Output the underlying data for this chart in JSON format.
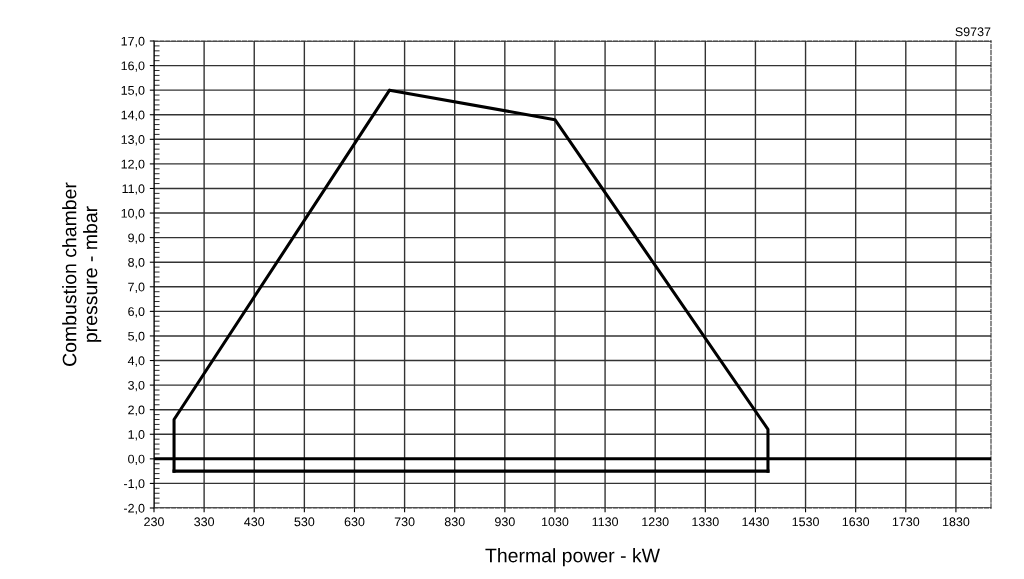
{
  "chart_data": {
    "type": "line",
    "xlabel": "Thermal power - kW",
    "ylabel": "Combustion chamber\npressure - mbar",
    "annotations": [
      "S9737"
    ],
    "series": [
      {
        "color": "#000000",
        "x": [
          270,
          270,
          700,
          1030,
          1455,
          1455
        ],
        "values": [
          -0.5,
          1.6,
          15,
          13.8,
          1.2,
          -0.5
        ]
      },
      {
        "color": "#000000",
        "x": [
          270,
          1455
        ],
        "values": [
          -0.5,
          -0.5
        ]
      }
    ],
    "xlim": [
      230,
      1900
    ],
    "xticks": [
      230,
      330,
      430,
      530,
      630,
      730,
      830,
      930,
      1030,
      1130,
      1230,
      1330,
      1430,
      1530,
      1630,
      1730,
      1830
    ],
    "ylim": [
      -2,
      17
    ],
    "yticks": [
      {
        "value": -2,
        "label": "-2,0"
      },
      {
        "value": -1,
        "label": "-1,0"
      },
      {
        "value": 0,
        "label": "0,0"
      },
      {
        "value": 1,
        "label": "1,0"
      },
      {
        "value": 2,
        "label": "2,0"
      },
      {
        "value": 3,
        "label": "3,0"
      },
      {
        "value": 4,
        "label": "4,0"
      },
      {
        "value": 5,
        "label": "5,0"
      },
      {
        "value": 6,
        "label": "6,0"
      },
      {
        "value": 7,
        "label": "7,0"
      },
      {
        "value": 8,
        "label": "8,0"
      },
      {
        "value": 9,
        "label": "9,0"
      },
      {
        "value": 10,
        "label": "10,0"
      },
      {
        "value": 11,
        "label": "11,0"
      },
      {
        "value": 12,
        "label": "12,0"
      },
      {
        "value": 13,
        "label": "13,0"
      },
      {
        "value": 14,
        "label": "14,0"
      },
      {
        "value": 15,
        "label": "15,0"
      },
      {
        "value": 16,
        "label": "16,0"
      },
      {
        "value": 17,
        "label": "17,0"
      }
    ],
    "ref_lines": [
      {
        "axis": "y",
        "value": 0,
        "label": null,
        "color": "#000000"
      }
    ],
    "grid": true,
    "marker": "none",
    "line_style": "solid",
    "legend": false
  }
}
